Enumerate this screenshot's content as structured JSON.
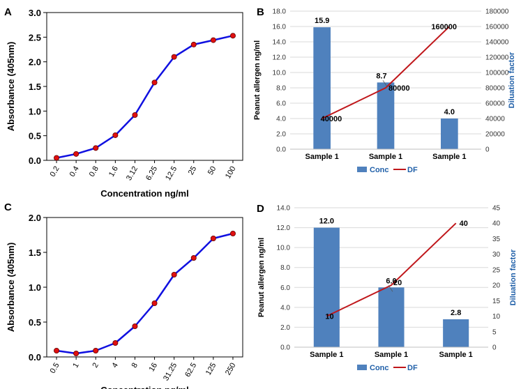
{
  "colors": {
    "curve_line": "#1010e0",
    "curve_marker": "#e01010",
    "bar_fill": "#4f81bd",
    "df_line": "#c0171b",
    "axis": "#000000",
    "grid": "#d9d9d9",
    "right_label": "#1f5fa8"
  },
  "chart_data": [
    {
      "panel": "A",
      "type": "line",
      "title": "",
      "xlabel": "Concentration ng/ml",
      "ylabel": "Absorbance (405nm)",
      "categories": [
        "0.2",
        "0.4",
        "0.8",
        "1.6",
        "3.12",
        "6.25",
        "12.5",
        "25",
        "50",
        "100"
      ],
      "values": [
        0.05,
        0.13,
        0.25,
        0.51,
        0.92,
        1.58,
        2.1,
        2.35,
        2.44,
        2.53
      ],
      "ylim": [
        0,
        3
      ],
      "yticks": [
        "0.0",
        "0.5",
        "1.0",
        "1.5",
        "2.0",
        "2.5",
        "3.0"
      ],
      "grid": false
    },
    {
      "panel": "B",
      "type": "bar",
      "categories": [
        "Sample 1",
        "Sample 1",
        "Sample 1"
      ],
      "series": [
        {
          "name": "Conc",
          "type": "bar",
          "axis": "left",
          "values": [
            15.9,
            8.7,
            4.0
          ],
          "labels": [
            "15.9",
            "8.7",
            "4.0"
          ]
        },
        {
          "name": "DF",
          "type": "line",
          "axis": "right",
          "values": [
            40000,
            80000,
            160000
          ],
          "labels": [
            "40000",
            "80000",
            "160000"
          ]
        }
      ],
      "ylabel": "Peanut allergen ng/ml",
      "ylabel_right": "Diluation factor",
      "ylim": [
        0,
        18
      ],
      "yticks": [
        "0.0",
        "2.0",
        "4.0",
        "6.0",
        "8.0",
        "10.0",
        "12.0",
        "14.0",
        "16.0",
        "18.0"
      ],
      "ylim_right": [
        0,
        180000
      ],
      "yticks_right": [
        "0",
        "20000",
        "40000",
        "60000",
        "80000",
        "100000",
        "120000",
        "140000",
        "160000",
        "180000"
      ],
      "legend": [
        "Conc",
        "DF"
      ],
      "grid": true
    },
    {
      "panel": "C",
      "type": "line",
      "title": "",
      "xlabel": "Concentration ng/ml",
      "ylabel": "Absorbance (405nm)",
      "categories": [
        "0.5",
        "1",
        "2",
        "4",
        "8",
        "16",
        "31.25",
        "62.5",
        "125",
        "250"
      ],
      "values": [
        0.09,
        0.05,
        0.09,
        0.2,
        0.44,
        0.77,
        1.18,
        1.42,
        1.7,
        1.77
      ],
      "ylim": [
        0,
        2
      ],
      "yticks": [
        "0.0",
        "0.5",
        "1.0",
        "1.5",
        "2.0"
      ],
      "grid": false
    },
    {
      "panel": "D",
      "type": "bar",
      "categories": [
        "Sample 1",
        "Sample 1",
        "Sample 1"
      ],
      "series": [
        {
          "name": "Conc",
          "type": "bar",
          "axis": "left",
          "values": [
            12.0,
            6.0,
            2.8
          ],
          "labels": [
            "12.0",
            "6.0",
            "2.8"
          ]
        },
        {
          "name": "DF",
          "type": "line",
          "axis": "right",
          "values": [
            10,
            20,
            40
          ],
          "labels": [
            "10",
            "20",
            "40"
          ]
        }
      ],
      "ylabel": "Peanut allergen ng/ml",
      "ylabel_right": "Diluation factor",
      "ylim": [
        0,
        14
      ],
      "yticks": [
        "0.0",
        "2.0",
        "4.0",
        "6.0",
        "8.0",
        "10.0",
        "12.0",
        "14.0"
      ],
      "ylim_right": [
        0,
        45
      ],
      "yticks_right": [
        "0",
        "5",
        "10",
        "15",
        "20",
        "25",
        "30",
        "35",
        "40",
        "45"
      ],
      "legend": [
        "Conc",
        "DF"
      ],
      "grid": true
    }
  ]
}
